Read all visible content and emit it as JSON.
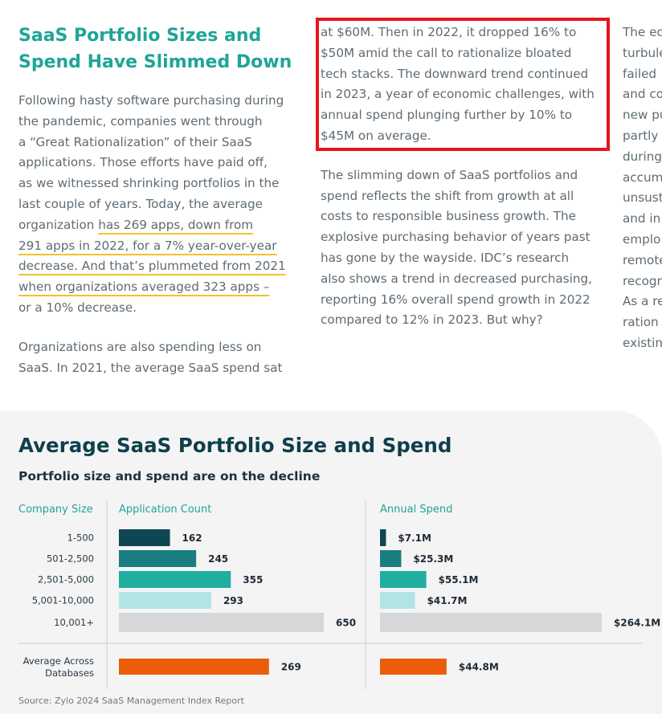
{
  "left_column": {
    "heading_line1": "SaaS Portfolio Sizes and",
    "heading_line2": "Spend Have Slimmed Down",
    "lines": [
      {
        "text": "Following hasty software purchasing during"
      },
      {
        "text": "the pandemic, companies went through"
      },
      {
        "text": "a “Great Rationalization” of their SaaS"
      },
      {
        "text": "applications. Those efforts have paid off,"
      },
      {
        "text": "as we witnessed shrinking portfolios in the"
      },
      {
        "text": "last couple of years. Today, the average"
      },
      {
        "pre": "organization ",
        "hl": "has 269 apps, down from"
      },
      {
        "hl": "291 apps in 2022, for a 7% year-over-year"
      },
      {
        "hl": "decrease. And that’s plummeted from 2021"
      },
      {
        "hl": "when organizations averaged 323 apps –"
      },
      {
        "text": "or a 10% decrease."
      }
    ],
    "para2_lines": [
      "Organizations are also spending less on",
      "SaaS. In 2021, the average SaaS spend sat"
    ]
  },
  "middle_column": {
    "para1_lines": [
      "at $60M. Then in 2022, it dropped 16% to",
      "$50M amid the call to rationalize bloated",
      "tech stacks. The downward trend continued",
      "in 2023, a year of economic challenges, with",
      "annual spend plunging further by 10% to",
      "$45M on average."
    ],
    "para2_lines": [
      "The slimming down of SaaS portfolios and",
      "spend reflects the shift from growth at all",
      "costs to responsible business growth. The",
      "explosive purchasing behavior of years past",
      "has gone by the wayside. IDC’s research",
      "also shows a trend in decreased purchasing,",
      "reporting 16% overall spend growth in 2022",
      "compared to 12% in 2023. But why?"
    ]
  },
  "right_column": {
    "lines": [
      "The ec",
      "turbule",
      "failed",
      "and co",
      "new pu",
      "partly",
      "during",
      "accum",
      "unsust",
      "and in",
      "emplo",
      "remote",
      "recogr",
      "As a re",
      "ration",
      "existin"
    ]
  },
  "chart_data": {
    "type": "bar",
    "title": "Average SaaS Portfolio Size and Spend",
    "subtitle": "Portfolio size and spend are on the decline",
    "category_header": "Company Size",
    "categories": [
      "1-500",
      "501-2,500",
      "2,501-5,000",
      "5,001-10,000",
      "10,001+"
    ],
    "series": [
      {
        "name": "Application Count",
        "values": [
          162,
          245,
          355,
          293,
          650
        ],
        "labels": [
          "162",
          "245",
          "355",
          "293",
          "650"
        ]
      },
      {
        "name": "Annual Spend",
        "values": [
          7.1,
          25.3,
          55.1,
          41.7,
          264.1
        ],
        "labels": [
          "$7.1M",
          "$25.3M",
          "$55.1M",
          "$41.7M",
          "$264.1M"
        ]
      }
    ],
    "average": {
      "label": "Average Across Databases",
      "label_line1": "Average Across",
      "label_line2": "Databases",
      "values": [
        269,
        44.8
      ],
      "labels": [
        "269",
        "$44.8M"
      ]
    },
    "category_colors": [
      "#0f4654",
      "#1a7d80",
      "#1faea0",
      "#b3e4e4",
      "#d6d7d9"
    ],
    "average_color": "#eb5d0b",
    "source": "Source: Zylo 2024 SaaS Management Index Report"
  }
}
